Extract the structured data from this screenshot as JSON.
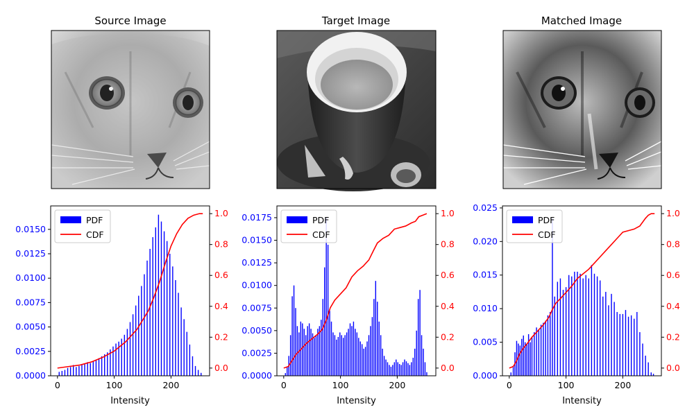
{
  "titles": [
    "Source Image",
    "Target Image",
    "Matched Image"
  ],
  "images": [
    {
      "name": "source-image",
      "subject": "grayscale close-up of a cat face"
    },
    {
      "name": "target-image",
      "subject": "grayscale coffee cup on saucer"
    },
    {
      "name": "matched-image",
      "subject": "grayscale cat face, contrast matched to target"
    }
  ],
  "colors": {
    "pdf": "#0000ff",
    "cdf": "#ff0000",
    "axes": "#000000"
  },
  "chart_data": [
    {
      "type": "bar",
      "title": "",
      "xlabel": "Intensity",
      "ylabel": "",
      "xlim": [
        -12,
        268
      ],
      "ylim": [
        0,
        0.0174
      ],
      "ylim_right": [
        -0.05,
        1.05
      ],
      "xticks": [
        0,
        100,
        200
      ],
      "yticks": [
        "0.0000",
        "0.0025",
        "0.0050",
        "0.0075",
        "0.0100",
        "0.0125",
        "0.0150"
      ],
      "yticks_right": [
        "0.0",
        "0.2",
        "0.4",
        "0.6",
        "0.8",
        "1.0"
      ],
      "legend": {
        "position": "upper-left",
        "entries": [
          "PDF",
          "CDF"
        ]
      },
      "series": [
        {
          "name": "PDF",
          "kind": "bar",
          "x": [
            3,
            8,
            13,
            18,
            23,
            28,
            33,
            38,
            43,
            48,
            53,
            58,
            63,
            68,
            73,
            78,
            83,
            88,
            93,
            98,
            103,
            108,
            113,
            118,
            123,
            128,
            133,
            138,
            143,
            148,
            153,
            158,
            163,
            168,
            173,
            178,
            183,
            188,
            193,
            198,
            203,
            208,
            213,
            218,
            223,
            228,
            233,
            238,
            243,
            248,
            253
          ],
          "values": [
            0.0004,
            0.0005,
            0.0006,
            0.0008,
            0.0009,
            0.0011,
            0.0009,
            0.001,
            0.0011,
            0.0012,
            0.0014,
            0.0013,
            0.0015,
            0.0016,
            0.0018,
            0.002,
            0.0022,
            0.0024,
            0.0027,
            0.003,
            0.0033,
            0.0035,
            0.0038,
            0.0042,
            0.0048,
            0.0055,
            0.0063,
            0.0072,
            0.0082,
            0.0092,
            0.0104,
            0.0118,
            0.013,
            0.0142,
            0.0152,
            0.0165,
            0.0158,
            0.0148,
            0.0138,
            0.0125,
            0.0112,
            0.0098,
            0.0085,
            0.007,
            0.0058,
            0.0045,
            0.0032,
            0.002,
            0.001,
            0.0006,
            0.0003
          ]
        },
        {
          "name": "CDF",
          "kind": "line",
          "x": [
            0,
            20,
            40,
            60,
            80,
            100,
            120,
            140,
            160,
            170,
            180,
            190,
            200,
            210,
            220,
            230,
            240,
            250,
            256
          ],
          "values": [
            0.0,
            0.01,
            0.02,
            0.04,
            0.07,
            0.11,
            0.17,
            0.25,
            0.37,
            0.46,
            0.56,
            0.68,
            0.79,
            0.87,
            0.93,
            0.97,
            0.99,
            1.0,
            1.0
          ]
        }
      ]
    },
    {
      "type": "bar",
      "title": "",
      "xlabel": "Intensity",
      "ylabel": "",
      "xlim": [
        -12,
        268
      ],
      "ylim": [
        0,
        0.0188
      ],
      "ylim_right": [
        -0.05,
        1.05
      ],
      "xticks": [
        0,
        100,
        200
      ],
      "yticks": [
        "0.0000",
        "0.0025",
        "0.0050",
        "0.0075",
        "0.0100",
        "0.0125",
        "0.0150",
        "0.0175"
      ],
      "yticks_right": [
        "0.0",
        "0.2",
        "0.4",
        "0.6",
        "0.8",
        "1.0"
      ],
      "legend": {
        "position": "upper-left",
        "entries": [
          "PDF",
          "CDF"
        ]
      },
      "series": [
        {
          "name": "PDF",
          "kind": "bar",
          "x": [
            3,
            6,
            9,
            12,
            15,
            18,
            21,
            24,
            27,
            30,
            33,
            36,
            39,
            42,
            45,
            48,
            51,
            54,
            57,
            60,
            63,
            66,
            69,
            72,
            75,
            78,
            81,
            84,
            87,
            90,
            93,
            96,
            99,
            102,
            105,
            108,
            111,
            114,
            117,
            120,
            123,
            126,
            129,
            132,
            135,
            138,
            141,
            144,
            147,
            150,
            153,
            156,
            159,
            162,
            165,
            168,
            171,
            174,
            177,
            180,
            183,
            186,
            189,
            192,
            195,
            198,
            201,
            204,
            207,
            210,
            213,
            216,
            219,
            222,
            225,
            228,
            231,
            234,
            237,
            240,
            243,
            246,
            249,
            252
          ],
          "values": [
            0.0003,
            0.001,
            0.0022,
            0.0045,
            0.0088,
            0.01,
            0.0075,
            0.0055,
            0.0048,
            0.006,
            0.0058,
            0.0052,
            0.0045,
            0.0055,
            0.0058,
            0.0052,
            0.0047,
            0.0042,
            0.0045,
            0.0052,
            0.0055,
            0.0062,
            0.0085,
            0.012,
            0.0175,
            0.0145,
            0.0072,
            0.006,
            0.0048,
            0.0045,
            0.004,
            0.0043,
            0.0048,
            0.0045,
            0.0042,
            0.0045,
            0.0048,
            0.0052,
            0.0058,
            0.0055,
            0.006,
            0.0052,
            0.0048,
            0.0042,
            0.0038,
            0.0035,
            0.003,
            0.0032,
            0.0038,
            0.0045,
            0.0055,
            0.0065,
            0.0085,
            0.0105,
            0.0082,
            0.006,
            0.0045,
            0.003,
            0.0022,
            0.0018,
            0.0015,
            0.0012,
            0.001,
            0.0012,
            0.0015,
            0.0018,
            0.0015,
            0.0013,
            0.0012,
            0.0015,
            0.0018,
            0.0016,
            0.0014,
            0.0012,
            0.0015,
            0.002,
            0.003,
            0.005,
            0.0085,
            0.0095,
            0.0045,
            0.003,
            0.0015,
            0.0004
          ]
        },
        {
          "name": "CDF",
          "kind": "line",
          "x": [
            0,
            8,
            15,
            22,
            30,
            40,
            50,
            60,
            68,
            75,
            82,
            90,
            100,
            110,
            120,
            130,
            140,
            150,
            158,
            165,
            175,
            185,
            195,
            205,
            215,
            225,
            232,
            238,
            245,
            252
          ],
          "values": [
            0.0,
            0.01,
            0.05,
            0.09,
            0.12,
            0.16,
            0.19,
            0.22,
            0.25,
            0.31,
            0.39,
            0.44,
            0.48,
            0.52,
            0.59,
            0.63,
            0.66,
            0.7,
            0.76,
            0.81,
            0.84,
            0.86,
            0.9,
            0.91,
            0.92,
            0.94,
            0.95,
            0.98,
            0.99,
            1.0
          ]
        }
      ]
    },
    {
      "type": "bar",
      "title": "",
      "xlabel": "Intensity",
      "ylabel": "",
      "xlim": [
        -12,
        268
      ],
      "ylim": [
        0,
        0.0253
      ],
      "ylim_right": [
        -0.05,
        1.05
      ],
      "xticks": [
        0,
        100,
        200
      ],
      "yticks": [
        "0.000",
        "0.005",
        "0.010",
        "0.015",
        "0.020",
        "0.025"
      ],
      "yticks_right": [
        "0.0",
        "0.2",
        "0.4",
        "0.6",
        "0.8",
        "1.0"
      ],
      "legend": {
        "position": "upper-left",
        "entries": [
          "PDF",
          "CDF"
        ]
      },
      "series": [
        {
          "name": "PDF",
          "kind": "bar",
          "x": [
            3,
            7,
            10,
            13,
            16,
            19,
            22,
            25,
            28,
            31,
            34,
            37,
            40,
            44,
            48,
            52,
            56,
            60,
            64,
            68,
            72,
            76,
            80,
            85,
            90,
            95,
            100,
            105,
            110,
            115,
            120,
            125,
            130,
            135,
            140,
            145,
            150,
            155,
            160,
            165,
            170,
            175,
            180,
            185,
            190,
            195,
            200,
            205,
            210,
            215,
            220,
            225,
            230,
            235,
            240,
            245,
            250,
            254
          ],
          "values": [
            0.0005,
            0.0015,
            0.0035,
            0.0052,
            0.0048,
            0.0045,
            0.0055,
            0.006,
            0.005,
            0.0048,
            0.0062,
            0.005,
            0.0058,
            0.0065,
            0.0072,
            0.0068,
            0.0076,
            0.0079,
            0.0082,
            0.009,
            0.0095,
            0.0235,
            0.0118,
            0.014,
            0.0145,
            0.0128,
            0.0132,
            0.015,
            0.0148,
            0.0155,
            0.0155,
            0.0152,
            0.0145,
            0.015,
            0.0145,
            0.0165,
            0.0152,
            0.0148,
            0.0142,
            0.0118,
            0.0125,
            0.0105,
            0.0122,
            0.011,
            0.0095,
            0.0092,
            0.0092,
            0.0098,
            0.0088,
            0.009,
            0.0085,
            0.0095,
            0.0065,
            0.0048,
            0.003,
            0.002,
            0.0005,
            0.0003
          ]
        },
        {
          "name": "CDF",
          "kind": "line",
          "x": [
            0,
            7,
            12,
            18,
            25,
            32,
            40,
            50,
            60,
            70,
            76,
            82,
            90,
            100,
            110,
            120,
            130,
            140,
            150,
            160,
            170,
            180,
            190,
            200,
            210,
            220,
            230,
            240,
            245,
            250,
            256
          ],
          "values": [
            0.0,
            0.01,
            0.04,
            0.09,
            0.13,
            0.16,
            0.2,
            0.24,
            0.28,
            0.33,
            0.38,
            0.42,
            0.45,
            0.49,
            0.53,
            0.58,
            0.61,
            0.64,
            0.68,
            0.72,
            0.76,
            0.8,
            0.84,
            0.88,
            0.89,
            0.9,
            0.92,
            0.97,
            0.99,
            1.0,
            1.0
          ]
        }
      ]
    }
  ]
}
